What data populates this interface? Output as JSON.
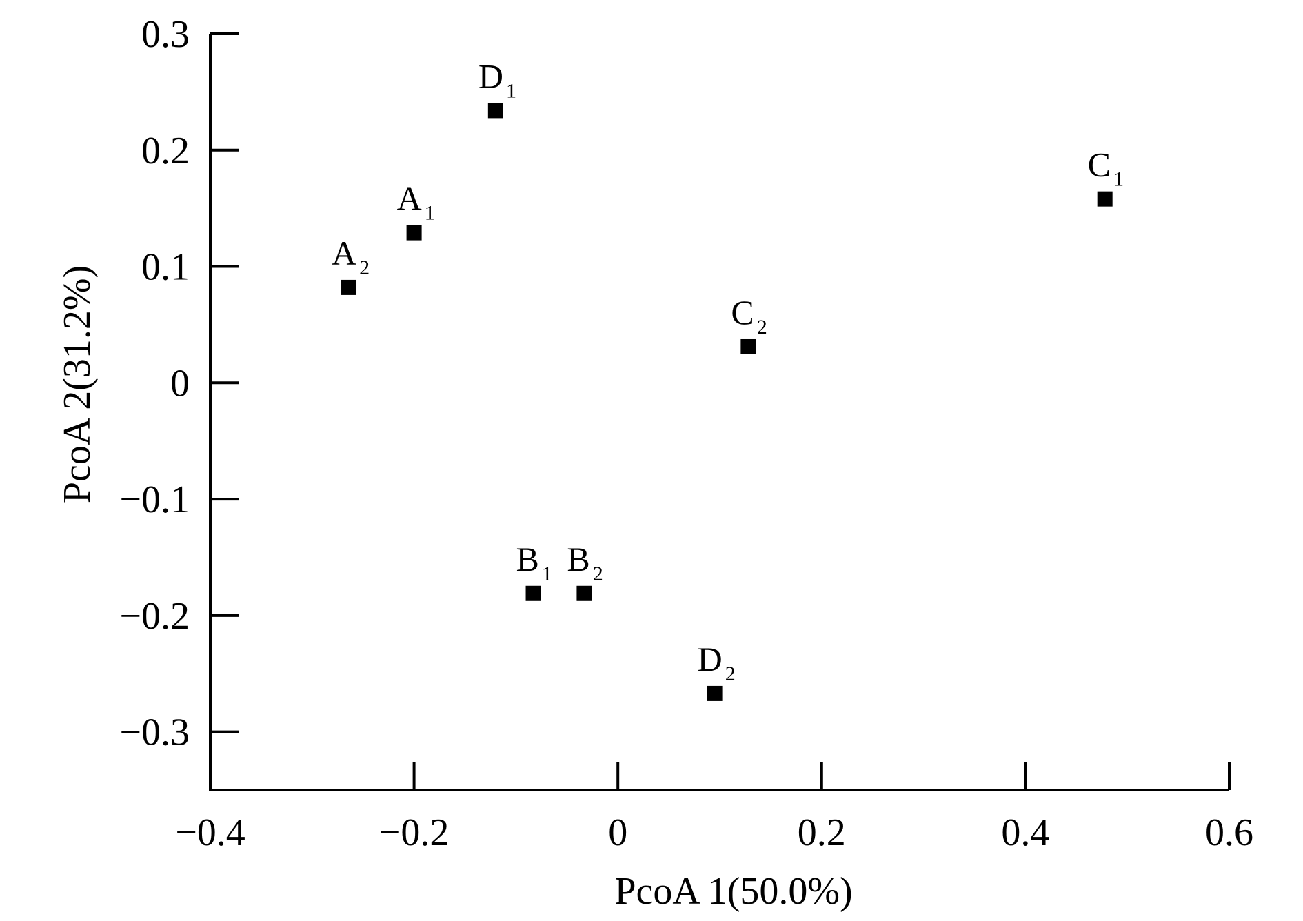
{
  "chart_data": {
    "type": "scatter",
    "xlabel": "PcoA 1(50.0%)",
    "ylabel": "PcoA 2(31.2%)",
    "xlim": [
      -0.4,
      0.6
    ],
    "ylim": [
      -0.35,
      0.3
    ],
    "xticks": [
      -0.4,
      -0.2,
      0,
      0.2,
      0.4,
      0.6
    ],
    "xtick_labels": [
      "−0.4",
      "−0.2",
      "0",
      "0.2",
      "0.4",
      "0.6"
    ],
    "yticks": [
      0.3,
      0.2,
      0.1,
      0,
      -0.1,
      -0.2,
      -0.3
    ],
    "ytick_labels": [
      "0.3",
      "0.2",
      "0.1",
      "0",
      "−0.1",
      "−0.2",
      "−0.3"
    ],
    "grid": false,
    "marker": "square",
    "marker_color": "#000000",
    "points": [
      {
        "label": "D",
        "sub": "1",
        "x": -0.12,
        "y": 0.234
      },
      {
        "label": "C",
        "sub": "1",
        "x": 0.478,
        "y": 0.158
      },
      {
        "label": "A",
        "sub": "1",
        "x": -0.2,
        "y": 0.129
      },
      {
        "label": "A",
        "sub": "2",
        "x": -0.264,
        "y": 0.082
      },
      {
        "label": "C",
        "sub": "2",
        "x": 0.128,
        "y": 0.031
      },
      {
        "label": "B",
        "sub": "1",
        "x": -0.083,
        "y": -0.181
      },
      {
        "label": "B",
        "sub": "2",
        "x": -0.033,
        "y": -0.181
      },
      {
        "label": "D",
        "sub": "2",
        "x": 0.095,
        "y": -0.267
      }
    ]
  }
}
